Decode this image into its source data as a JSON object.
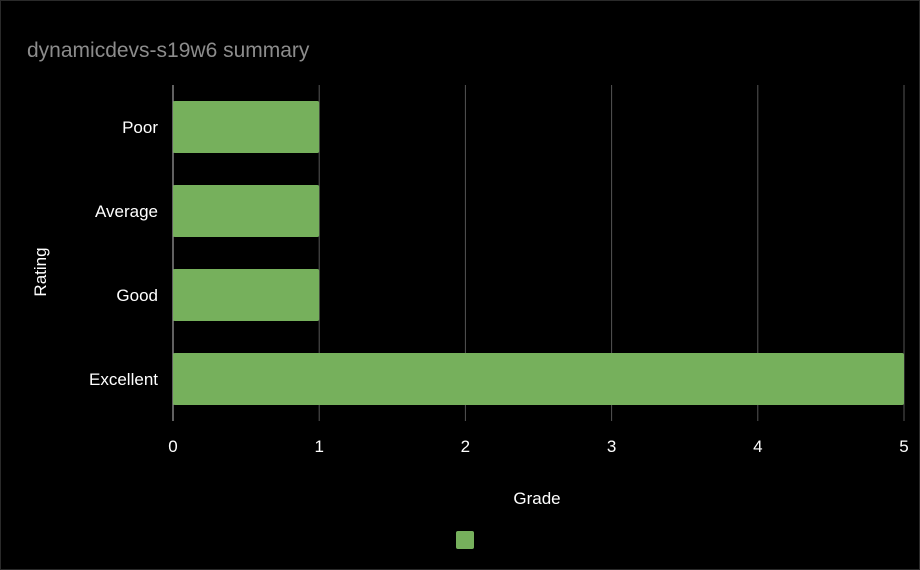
{
  "chart_data": {
    "type": "bar",
    "orientation": "horizontal",
    "title": "dynamicdevs-s19w6 summary",
    "xlabel": "Grade",
    "ylabel": "Rating",
    "categories": [
      "Poor",
      "Average",
      "Good",
      "Excellent"
    ],
    "series": [
      {
        "values": [
          1,
          1,
          1,
          5
        ],
        "color": "#76b05c"
      }
    ],
    "xlim": [
      0,
      5
    ],
    "xticks": [
      "0",
      "1",
      "2",
      "3",
      "4",
      "5"
    ],
    "grid": "vertical",
    "legend": "bottom",
    "colors": {
      "background": "#000000",
      "bar": "#76b05c",
      "grid": "#555555",
      "title": "#8c8c8c",
      "text": "#ffffff"
    }
  }
}
